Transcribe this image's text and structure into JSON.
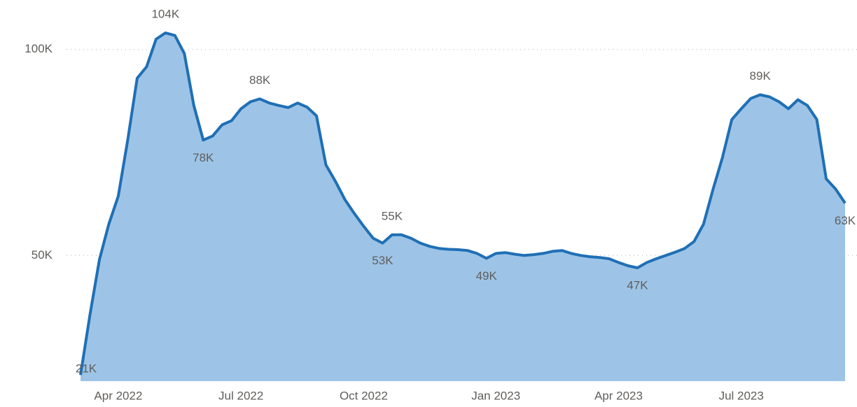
{
  "chart_data": {
    "type": "area",
    "categories": [
      null,
      null,
      null,
      null,
      "Apr 2022",
      null,
      null,
      null,
      null,
      null,
      null,
      null,
      null,
      null,
      null,
      null,
      null,
      "Jul 2022",
      null,
      null,
      null,
      null,
      null,
      null,
      null,
      null,
      null,
      null,
      null,
      null,
      "Oct 2022",
      null,
      null,
      null,
      null,
      null,
      null,
      null,
      null,
      null,
      null,
      null,
      null,
      null,
      "Jan 2023",
      null,
      null,
      null,
      null,
      null,
      null,
      null,
      null,
      null,
      null,
      null,
      null,
      "Apr 2023",
      null,
      null,
      null,
      null,
      null,
      null,
      null,
      null,
      null,
      null,
      null,
      null,
      "Jul 2023",
      null,
      null,
      null,
      null,
      null,
      null,
      null,
      null,
      null,
      null,
      null
    ],
    "values": [
      21000,
      35600,
      49000,
      57600,
      64400,
      78000,
      93000,
      95800,
      102500,
      104000,
      103400,
      99000,
      86400,
      78000,
      79000,
      81700,
      82700,
      85600,
      87300,
      88000,
      87000,
      86400,
      85900,
      87000,
      86000,
      83900,
      72000,
      68000,
      63600,
      60200,
      57100,
      54200,
      53000,
      55000,
      55000,
      54200,
      53000,
      52200,
      51700,
      51500,
      51400,
      51200,
      50500,
      49300,
      50500,
      50700,
      50300,
      50000,
      50200,
      50500,
      51000,
      51200,
      50500,
      50000,
      49700,
      49500,
      49200,
      48300,
      47500,
      47000,
      48300,
      49200,
      50000,
      50800,
      51700,
      53400,
      57600,
      66000,
      73700,
      83000,
      85600,
      88100,
      89000,
      88500,
      87300,
      85600,
      87800,
      86400,
      83000,
      68600,
      66100,
      62700
    ],
    "value_labels": [
      "21K",
      null,
      null,
      null,
      null,
      null,
      null,
      null,
      null,
      "104K",
      null,
      null,
      null,
      "78K",
      null,
      null,
      null,
      null,
      null,
      "88K",
      null,
      null,
      null,
      null,
      null,
      null,
      null,
      null,
      null,
      null,
      null,
      null,
      "53K",
      "55K",
      null,
      null,
      null,
      null,
      null,
      null,
      null,
      null,
      null,
      "49K",
      null,
      null,
      null,
      null,
      null,
      null,
      null,
      null,
      null,
      null,
      null,
      null,
      null,
      null,
      null,
      "47K",
      null,
      null,
      null,
      null,
      null,
      null,
      null,
      null,
      null,
      null,
      null,
      null,
      "89K",
      null,
      null,
      null,
      null,
      null,
      null,
      null,
      null,
      "63K"
    ],
    "line_color": "#1f6fb5",
    "fill_color": "#9dc4e6",
    "ylim": [
      19500,
      112000
    ],
    "yticks": [
      {
        "value": 50000,
        "label": "50K"
      },
      {
        "value": 100000,
        "label": "100K"
      }
    ],
    "grid": true
  }
}
